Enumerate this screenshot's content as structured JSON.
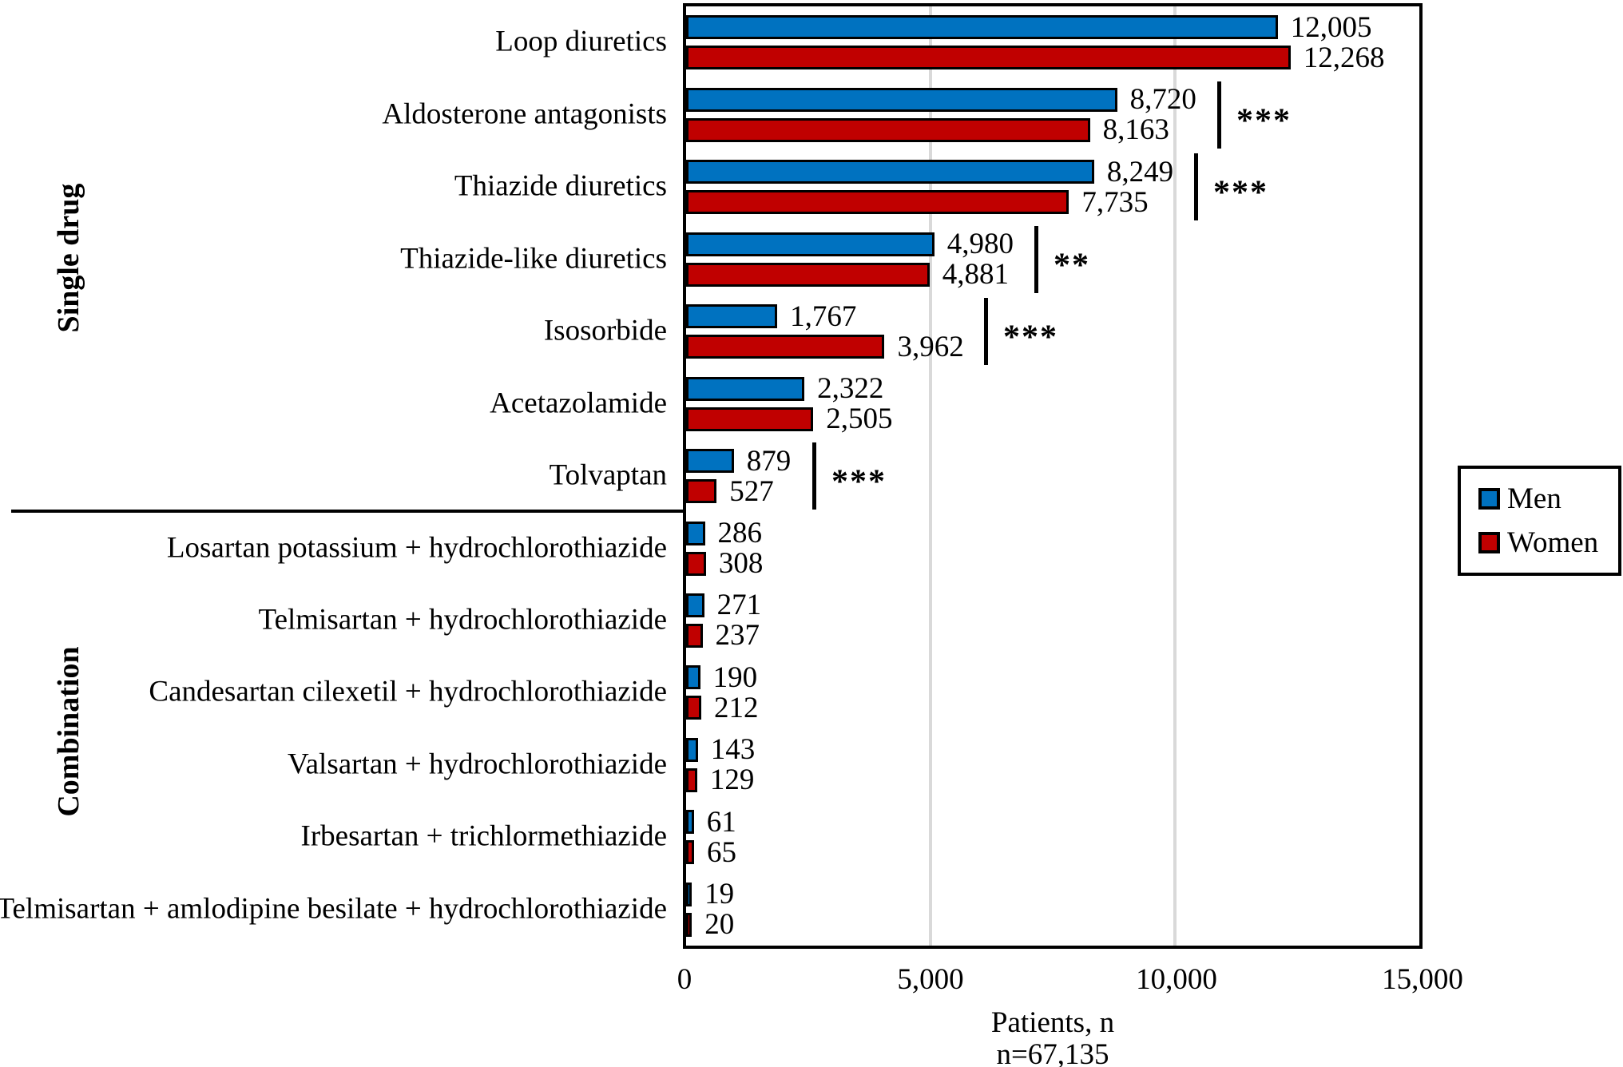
{
  "chart_data": {
    "type": "bar",
    "orientation": "horizontal",
    "title": "",
    "xlabel": "Patients, n",
    "xlabel_note": "n=67,135",
    "ylabel": "",
    "xlim": [
      0,
      15000
    ],
    "x_tick_labels": [
      "0",
      "5,000",
      "10,000",
      "15,000"
    ],
    "gridlines_at": [
      5000,
      10000
    ],
    "grid_color": "#D9D9D9",
    "bar_outline_color": "#000000",
    "legend": {
      "position": "right",
      "items": [
        {
          "name": "Men",
          "color": "#0072C0"
        },
        {
          "name": "Women",
          "color": "#C00000"
        }
      ]
    },
    "groups": [
      {
        "label": "Single drug"
      },
      {
        "label": "Combination"
      }
    ],
    "categories": [
      {
        "label": "Loop diuretics",
        "group": "Single drug",
        "men": 12005,
        "women": 12268,
        "men_label": "12,005",
        "women_label": "12,268",
        "significance": ""
      },
      {
        "label": "Aldosterone antagonists",
        "group": "Single drug",
        "men": 8720,
        "women": 8163,
        "men_label": "8,720",
        "women_label": "8,163",
        "significance": "***"
      },
      {
        "label": "Thiazide diuretics",
        "group": "Single drug",
        "men": 8249,
        "women": 7735,
        "men_label": "8,249",
        "women_label": "7,735",
        "significance": "***"
      },
      {
        "label": "Thiazide-like diuretics",
        "group": "Single drug",
        "men": 4980,
        "women": 4881,
        "men_label": "4,980",
        "women_label": "4,881",
        "significance": "**"
      },
      {
        "label": "Isosorbide",
        "group": "Single drug",
        "men": 1767,
        "women": 3962,
        "men_label": "1,767",
        "women_label": "3,962",
        "significance": "***"
      },
      {
        "label": "Acetazolamide",
        "group": "Single drug",
        "men": 2322,
        "women": 2505,
        "men_label": "2,322",
        "women_label": "2,505",
        "significance": ""
      },
      {
        "label": "Tolvaptan",
        "group": "Single drug",
        "men": 879,
        "women": 527,
        "men_label": "879",
        "women_label": "527",
        "significance": "***"
      },
      {
        "label": "Losartan potassium + hydrochlorothiazide",
        "group": "Combination",
        "men": 286,
        "women": 308,
        "men_label": "286",
        "women_label": "308",
        "significance": ""
      },
      {
        "label": "Telmisartan + hydrochlorothiazide",
        "group": "Combination",
        "men": 271,
        "women": 237,
        "men_label": "271",
        "women_label": "237",
        "significance": ""
      },
      {
        "label": "Candesartan cilexetil + hydrochlorothiazide",
        "group": "Combination",
        "men": 190,
        "women": 212,
        "men_label": "190",
        "women_label": "212",
        "significance": ""
      },
      {
        "label": "Valsartan + hydrochlorothiazide",
        "group": "Combination",
        "men": 143,
        "women": 129,
        "men_label": "143",
        "women_label": "129",
        "significance": ""
      },
      {
        "label": "Irbesartan + trichlormethiazide",
        "group": "Combination",
        "men": 61,
        "women": 65,
        "men_label": "61",
        "women_label": "65",
        "significance": ""
      },
      {
        "label": "Telmisartan + amlodipine besilate + hydrochlorothiazide",
        "group": "Combination",
        "men": 19,
        "women": 20,
        "men_label": "19",
        "women_label": "20",
        "significance": ""
      }
    ]
  }
}
